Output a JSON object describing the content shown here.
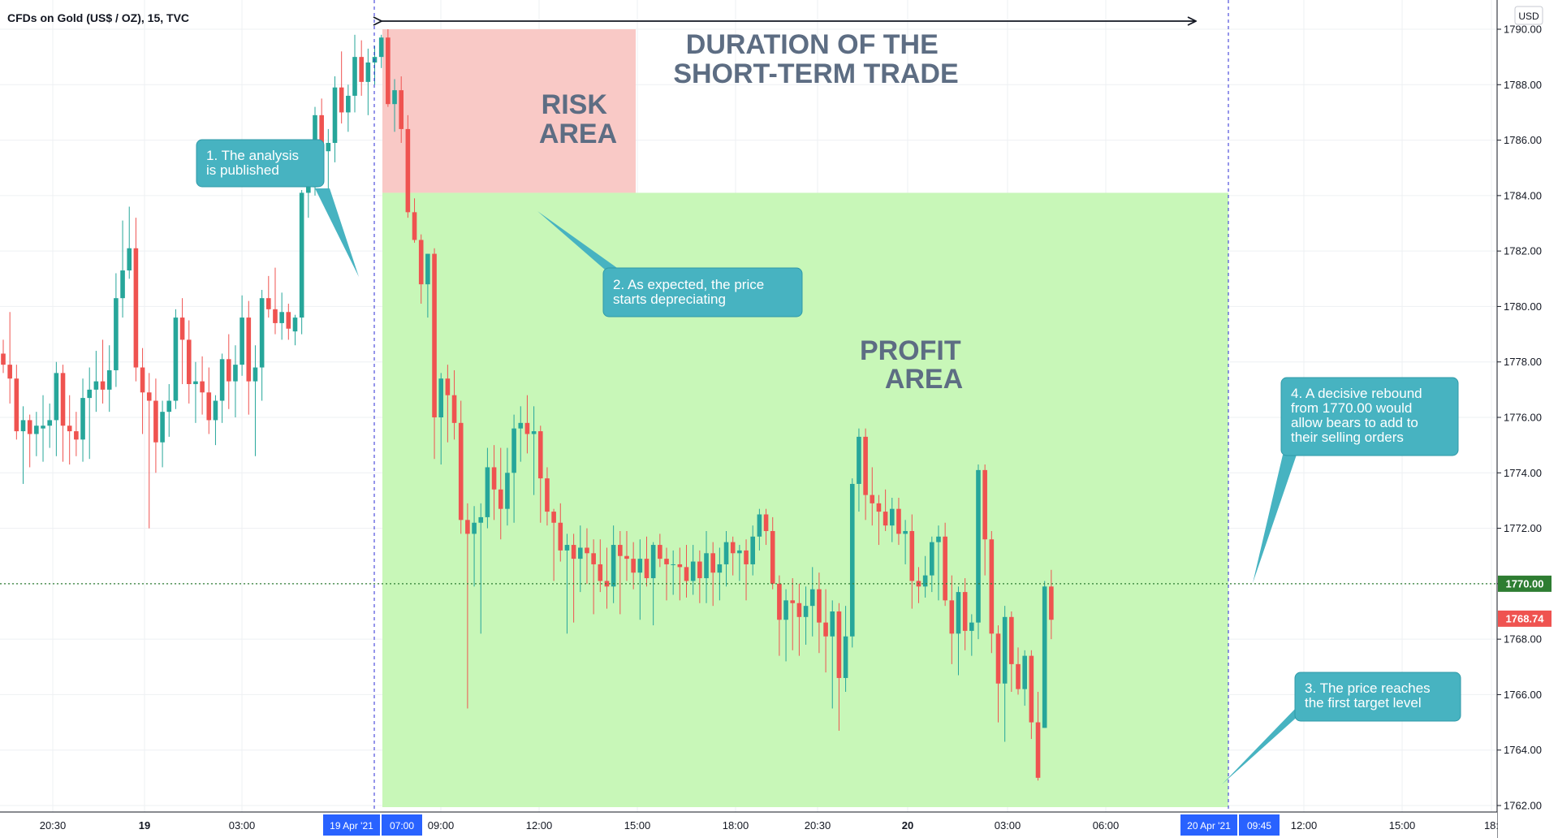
{
  "chart_title": "CFDs on Gold (US$ / OZ), 15, TVC",
  "currency": "USD",
  "colors": {
    "up": "#26a69a",
    "down": "#ef5350",
    "profit": "#c8f7b8",
    "risk": "#f9c9c6",
    "callout": "#47b3c1"
  },
  "annotations": {
    "duration_label": [
      "DURATION OF THE",
      "SHORT-TERM TRADE"
    ],
    "risk_label": [
      "RISK",
      "AREA"
    ],
    "profit_label": [
      "PROFIT",
      "AREA"
    ],
    "callout_1": [
      "1. The analysis",
      "is published"
    ],
    "callout_2": [
      "2. As expected, the price",
      "starts depreciating"
    ],
    "callout_3": [
      "3. The price reaches",
      "the first target level"
    ],
    "callout_4": [
      "4. A decisive rebound",
      "from 1770.00 would",
      "allow bears to add to",
      "their selling orders"
    ]
  },
  "chart_data": {
    "type": "candlestick",
    "y_axis": {
      "min": 1762,
      "max": 1790,
      "ticks": [
        "1762.00",
        "1764.00",
        "1766.00",
        "1768.00",
        "1770.00",
        "1772.00",
        "1774.00",
        "1776.00",
        "1778.00",
        "1780.00",
        "1782.00",
        "1784.00",
        "1786.00",
        "1788.00",
        "1790.00"
      ]
    },
    "x_ticks": [
      "20:30",
      "19",
      "03:00",
      "09:00",
      "12:00",
      "15:00",
      "18:00",
      "20:30",
      "20",
      "03:00",
      "06:00",
      "12:00",
      "15:00",
      "18:"
    ],
    "x_highlights": [
      "19 Apr '21",
      "07:00",
      "20 Apr '21",
      "09:45"
    ],
    "price_labels": {
      "level": "1770.00",
      "last": "1768.74"
    },
    "zones": {
      "risk": {
        "from": 1784.1,
        "to": 1790
      },
      "profit": {
        "from": 1762,
        "to": 1784.1
      }
    },
    "candles": [
      [
        1778.3,
        1778.8,
        1777.6,
        1777.9
      ],
      [
        1777.9,
        1779.8,
        1776.5,
        1777.4
      ],
      [
        1777.4,
        1777.9,
        1775.2,
        1775.5
      ],
      [
        1775.5,
        1776.4,
        1773.6,
        1775.9
      ],
      [
        1775.9,
        1776.1,
        1774.2,
        1775.4
      ],
      [
        1775.4,
        1776.2,
        1774.6,
        1775.7
      ],
      [
        1775.6,
        1776.8,
        1774.4,
        1775.7
      ],
      [
        1775.7,
        1776.5,
        1774.9,
        1775.9
      ],
      [
        1775.9,
        1778.0,
        1774.6,
        1777.6
      ],
      [
        1777.6,
        1777.9,
        1774.4,
        1775.7
      ],
      [
        1775.7,
        1776.8,
        1774.3,
        1775.5
      ],
      [
        1775.5,
        1776.2,
        1774.6,
        1775.2
      ],
      [
        1775.2,
        1777.4,
        1774.4,
        1776.7
      ],
      [
        1776.7,
        1777.8,
        1774.5,
        1777.0
      ],
      [
        1777.0,
        1778.4,
        1776.2,
        1777.3
      ],
      [
        1777.3,
        1778.8,
        1776.5,
        1777.0
      ],
      [
        1777.0,
        1778.6,
        1776.2,
        1777.7
      ],
      [
        1777.7,
        1781.2,
        1777.1,
        1780.3
      ],
      [
        1780.3,
        1783.1,
        1779.6,
        1781.3
      ],
      [
        1781.3,
        1783.6,
        1781.0,
        1782.1
      ],
      [
        1782.1,
        1783.2,
        1777.3,
        1777.8
      ],
      [
        1777.8,
        1778.5,
        1775.4,
        1776.9
      ],
      [
        1776.9,
        1777.6,
        1772.0,
        1776.6
      ],
      [
        1776.6,
        1777.4,
        1774.0,
        1775.1
      ],
      [
        1775.1,
        1776.6,
        1774.2,
        1776.2
      ],
      [
        1776.2,
        1777.2,
        1775.3,
        1776.6
      ],
      [
        1776.6,
        1779.9,
        1776.3,
        1779.6
      ],
      [
        1779.6,
        1780.3,
        1777.2,
        1778.8
      ],
      [
        1778.8,
        1779.5,
        1776.5,
        1777.2
      ],
      [
        1777.2,
        1778.0,
        1775.8,
        1777.3
      ],
      [
        1777.3,
        1778.2,
        1776.1,
        1776.9
      ],
      [
        1776.9,
        1777.8,
        1775.4,
        1775.9
      ],
      [
        1775.9,
        1776.8,
        1775.0,
        1776.6
      ],
      [
        1776.6,
        1778.3,
        1775.8,
        1778.1
      ],
      [
        1778.1,
        1779.0,
        1776.3,
        1777.3
      ],
      [
        1777.3,
        1778.6,
        1776.0,
        1777.9
      ],
      [
        1777.9,
        1780.4,
        1777.5,
        1779.6
      ],
      [
        1779.6,
        1780.2,
        1776.1,
        1777.3
      ],
      [
        1777.3,
        1778.6,
        1774.6,
        1777.8
      ],
      [
        1777.8,
        1780.6,
        1776.6,
        1780.3
      ],
      [
        1780.3,
        1781.1,
        1779.6,
        1779.9
      ],
      [
        1779.9,
        1781.4,
        1779.0,
        1779.4
      ],
      [
        1779.4,
        1780.5,
        1778.8,
        1779.8
      ],
      [
        1779.8,
        1780.1,
        1778.8,
        1779.2
      ],
      [
        1779.1,
        1779.7,
        1778.6,
        1779.6
      ],
      [
        1779.6,
        1784.2,
        1779.0,
        1784.1
      ],
      [
        1784.1,
        1785.4,
        1783.2,
        1784.4
      ],
      [
        1784.3,
        1787.2,
        1784.0,
        1786.9
      ],
      [
        1786.9,
        1787.5,
        1785.3,
        1785.6
      ],
      [
        1785.6,
        1786.4,
        1783.6,
        1785.9
      ],
      [
        1785.9,
        1788.3,
        1785.2,
        1787.9
      ],
      [
        1787.9,
        1789.2,
        1786.6,
        1787.0
      ],
      [
        1787.0,
        1788.0,
        1786.3,
        1787.6
      ],
      [
        1787.6,
        1789.8,
        1787.0,
        1789.0
      ],
      [
        1789.0,
        1789.6,
        1787.6,
        1788.1
      ],
      [
        1788.1,
        1789.3,
        1786.9,
        1788.8
      ],
      [
        1788.8,
        1789.4,
        1788.0,
        1789.0
      ],
      [
        1789.0,
        1789.8,
        1788.6,
        1789.7
      ],
      [
        1789.7,
        1790.0,
        1787.2,
        1787.3
      ],
      [
        1787.3,
        1788.2,
        1786.3,
        1787.8
      ],
      [
        1787.8,
        1788.3,
        1785.9,
        1786.4
      ],
      [
        1786.4,
        1786.9,
        1783.2,
        1783.4
      ],
      [
        1783.4,
        1783.9,
        1782.3,
        1782.4
      ],
      [
        1782.4,
        1782.6,
        1780.1,
        1780.8
      ],
      [
        1780.8,
        1781.9,
        1779.6,
        1781.9
      ],
      [
        1781.9,
        1782.1,
        1774.5,
        1776.0
      ],
      [
        1776.0,
        1777.6,
        1774.3,
        1777.4
      ],
      [
        1777.4,
        1777.9,
        1775.1,
        1776.8
      ],
      [
        1776.8,
        1777.7,
        1775.2,
        1775.8
      ],
      [
        1775.8,
        1776.6,
        1771.8,
        1772.3
      ],
      [
        1772.3,
        1772.9,
        1765.5,
        1771.8
      ],
      [
        1771.8,
        1772.8,
        1769.9,
        1772.2
      ],
      [
        1772.2,
        1772.9,
        1768.2,
        1772.4
      ],
      [
        1772.4,
        1774.9,
        1772.0,
        1774.2
      ],
      [
        1774.2,
        1775.0,
        1772.3,
        1773.4
      ],
      [
        1773.4,
        1774.9,
        1771.6,
        1772.7
      ],
      [
        1772.7,
        1774.9,
        1772.1,
        1774.0
      ],
      [
        1774.0,
        1776.1,
        1772.2,
        1775.6
      ],
      [
        1775.6,
        1776.4,
        1774.4,
        1775.8
      ],
      [
        1775.8,
        1776.8,
        1774.7,
        1775.4
      ],
      [
        1775.4,
        1776.4,
        1773.2,
        1775.5
      ],
      [
        1775.5,
        1775.7,
        1772.2,
        1773.8
      ],
      [
        1773.8,
        1774.2,
        1772.1,
        1772.6
      ],
      [
        1772.6,
        1772.7,
        1770.1,
        1772.2
      ],
      [
        1772.2,
        1772.9,
        1770.8,
        1771.2
      ],
      [
        1771.2,
        1771.8,
        1768.2,
        1771.4
      ],
      [
        1771.4,
        1771.8,
        1768.6,
        1770.9
      ],
      [
        1770.9,
        1772.1,
        1769.7,
        1771.3
      ],
      [
        1771.3,
        1772.0,
        1770.0,
        1771.1
      ],
      [
        1771.1,
        1771.6,
        1768.9,
        1770.7
      ],
      [
        1770.7,
        1771.6,
        1769.7,
        1770.1
      ],
      [
        1770.1,
        1771.3,
        1769.1,
        1769.9
      ],
      [
        1769.9,
        1772.1,
        1769.3,
        1771.4
      ],
      [
        1771.4,
        1771.9,
        1768.9,
        1771.0
      ],
      [
        1771.0,
        1771.9,
        1770.1,
        1770.9
      ],
      [
        1770.9,
        1771.5,
        1769.8,
        1770.4
      ],
      [
        1770.4,
        1771.6,
        1768.7,
        1770.9
      ],
      [
        1770.9,
        1771.7,
        1769.9,
        1770.2
      ],
      [
        1770.2,
        1771.5,
        1768.5,
        1771.4
      ],
      [
        1771.4,
        1771.8,
        1770.6,
        1770.9
      ],
      [
        1770.9,
        1771.3,
        1769.4,
        1770.7
      ],
      [
        1770.7,
        1771.2,
        1769.6,
        1770.7
      ],
      [
        1770.7,
        1771.3,
        1769.4,
        1770.6
      ],
      [
        1770.6,
        1771.4,
        1769.5,
        1770.1
      ],
      [
        1770.1,
        1771.4,
        1769.6,
        1770.8
      ],
      [
        1770.8,
        1771.2,
        1769.3,
        1770.2
      ],
      [
        1770.2,
        1771.9,
        1769.3,
        1771.1
      ],
      [
        1771.1,
        1771.5,
        1769.2,
        1770.4
      ],
      [
        1770.4,
        1771.3,
        1769.4,
        1770.7
      ],
      [
        1770.7,
        1771.9,
        1769.9,
        1771.5
      ],
      [
        1771.5,
        1771.7,
        1770.3,
        1771.1
      ],
      [
        1771.1,
        1771.4,
        1770.1,
        1771.2
      ],
      [
        1771.2,
        1771.6,
        1769.4,
        1770.7
      ],
      [
        1770.7,
        1772.1,
        1770.3,
        1771.7
      ],
      [
        1771.7,
        1772.7,
        1771.2,
        1772.5
      ],
      [
        1772.5,
        1772.7,
        1771.4,
        1771.9
      ],
      [
        1771.9,
        1772.4,
        1769.8,
        1770.0
      ],
      [
        1770.0,
        1770.3,
        1767.4,
        1768.7
      ],
      [
        1768.7,
        1769.8,
        1767.2,
        1769.4
      ],
      [
        1769.4,
        1770.2,
        1767.6,
        1769.3
      ],
      [
        1769.3,
        1770.0,
        1767.4,
        1768.8
      ],
      [
        1768.8,
        1769.9,
        1767.8,
        1769.2
      ],
      [
        1769.2,
        1770.6,
        1768.1,
        1769.8
      ],
      [
        1769.8,
        1770.4,
        1767.5,
        1768.6
      ],
      [
        1768.6,
        1769.8,
        1766.8,
        1768.1
      ],
      [
        1768.1,
        1769.4,
        1765.5,
        1769.0
      ],
      [
        1769.0,
        1769.3,
        1764.7,
        1766.6
      ],
      [
        1766.6,
        1769.2,
        1766.1,
        1768.1
      ],
      [
        1768.1,
        1773.8,
        1767.7,
        1773.6
      ],
      [
        1773.6,
        1775.6,
        1772.6,
        1775.3
      ],
      [
        1775.3,
        1775.6,
        1772.3,
        1773.2
      ],
      [
        1773.2,
        1774.2,
        1772.1,
        1772.9
      ],
      [
        1772.9,
        1773.2,
        1771.4,
        1772.6
      ],
      [
        1772.6,
        1773.4,
        1771.9,
        1772.1
      ],
      [
        1772.1,
        1773.1,
        1771.5,
        1772.7
      ],
      [
        1772.7,
        1773.1,
        1771.4,
        1771.8
      ],
      [
        1771.8,
        1772.3,
        1770.7,
        1771.9
      ],
      [
        1771.9,
        1772.5,
        1769.1,
        1770.1
      ],
      [
        1770.1,
        1770.6,
        1769.3,
        1769.9
      ],
      [
        1769.9,
        1771.0,
        1769.5,
        1770.3
      ],
      [
        1770.3,
        1771.7,
        1769.7,
        1771.5
      ],
      [
        1771.5,
        1772.1,
        1769.4,
        1771.7
      ],
      [
        1771.7,
        1772.2,
        1769.2,
        1769.4
      ],
      [
        1769.4,
        1770.3,
        1767.1,
        1768.2
      ],
      [
        1768.2,
        1769.9,
        1766.7,
        1769.7
      ],
      [
        1769.7,
        1770.2,
        1767.6,
        1768.3
      ],
      [
        1768.3,
        1768.9,
        1767.4,
        1768.6
      ],
      [
        1768.6,
        1774.3,
        1768.0,
        1774.1
      ],
      [
        1774.1,
        1774.3,
        1770.3,
        1771.6
      ],
      [
        1771.6,
        1771.9,
        1767.5,
        1768.2
      ],
      [
        1768.2,
        1768.5,
        1765.0,
        1766.4
      ],
      [
        1766.4,
        1769.2,
        1764.3,
        1768.8
      ],
      [
        1768.8,
        1769.0,
        1766.1,
        1767.1
      ],
      [
        1767.1,
        1767.7,
        1766.0,
        1766.2
      ],
      [
        1766.2,
        1767.6,
        1765.6,
        1767.4
      ],
      [
        1767.4,
        1767.6,
        1764.4,
        1765.0
      ],
      [
        1765.0,
        1766.1,
        1762.9,
        1763.0
      ],
      [
        1764.8,
        1770.1,
        1764.8,
        1769.9
      ],
      [
        1769.9,
        1770.5,
        1768.0,
        1768.7
      ]
    ]
  }
}
